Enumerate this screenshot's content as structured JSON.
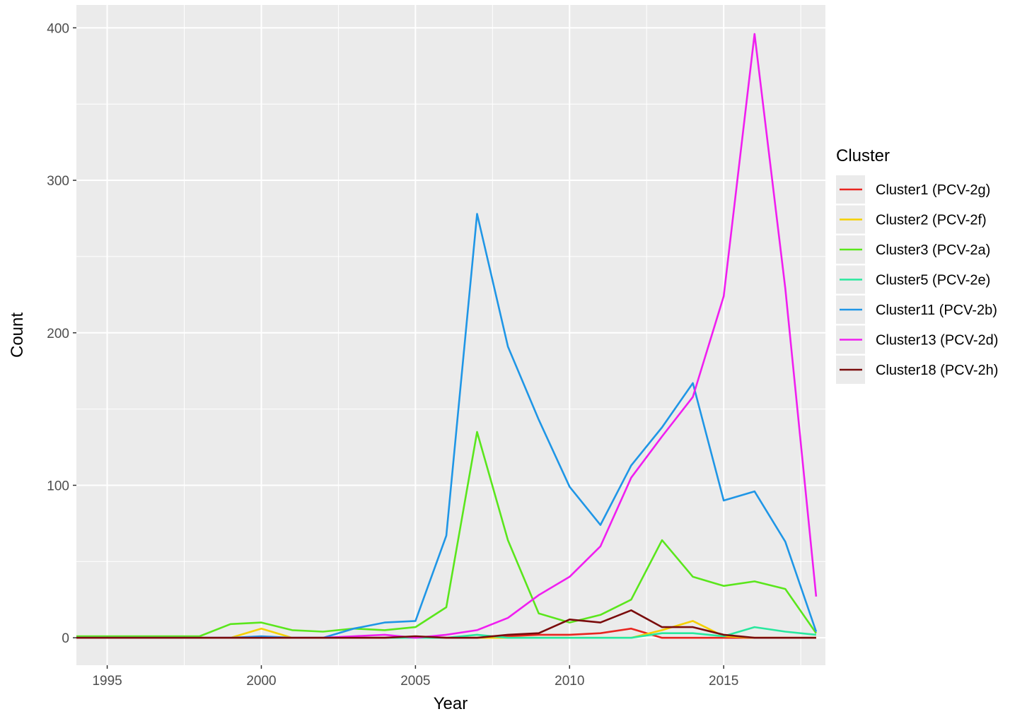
{
  "chart_data": {
    "type": "line",
    "xlabel": "Year",
    "ylabel": "Count",
    "xlim": [
      1994,
      2018.3
    ],
    "ylim": [
      -18,
      415
    ],
    "x_ticks": [
      1995,
      2000,
      2005,
      2010,
      2015
    ],
    "y_ticks": [
      0,
      100,
      200,
      300,
      400
    ],
    "x": [
      1994,
      1995,
      1996,
      1997,
      1998,
      1999,
      2000,
      2001,
      2002,
      2003,
      2004,
      2005,
      2006,
      2007,
      2008,
      2009,
      2010,
      2011,
      2012,
      2013,
      2014,
      2015,
      2016,
      2017,
      2018
    ],
    "grid": true,
    "background": "#ebebeb",
    "legend_title": "Cluster",
    "legend_position": "right",
    "series": [
      {
        "name": "Cluster1 (PCV-2g)",
        "color": "#e8251f",
        "values": [
          0,
          0,
          0,
          0,
          0,
          0,
          0,
          0,
          0,
          0,
          0,
          0,
          0,
          0,
          1,
          2,
          2,
          3,
          6,
          0,
          0,
          0,
          0,
          0,
          0
        ]
      },
      {
        "name": "Cluster2 (PCV-2f)",
        "color": "#f5d000",
        "values": [
          0,
          0,
          0,
          0,
          0,
          0,
          6,
          0,
          0,
          0,
          0,
          0,
          0,
          0,
          0,
          0,
          0,
          0,
          0,
          5,
          11,
          1,
          0,
          0,
          0
        ]
      },
      {
        "name": "Cluster3 (PCV-2a)",
        "color": "#5ae61c",
        "values": [
          1,
          1,
          1,
          1,
          1,
          9,
          10,
          5,
          4,
          6,
          5,
          7,
          20,
          135,
          64,
          16,
          10,
          15,
          25,
          64,
          40,
          34,
          37,
          32,
          3
        ]
      },
      {
        "name": "Cluster5 (PCV-2e)",
        "color": "#28e89e",
        "values": [
          0,
          0,
          0,
          0,
          0,
          0,
          0,
          0,
          0,
          0,
          0,
          0,
          0,
          2,
          0,
          0,
          0,
          0,
          0,
          3,
          3,
          1,
          7,
          4,
          2
        ]
      },
      {
        "name": "Cluster11 (PCV-2b)",
        "color": "#1f96e6",
        "values": [
          0,
          0,
          0,
          0,
          0,
          0,
          1,
          0,
          0,
          6,
          10,
          11,
          67,
          278,
          191,
          143,
          99,
          74,
          113,
          138,
          167,
          90,
          96,
          63,
          4
        ]
      },
      {
        "name": "Cluster13 (PCV-2d)",
        "color": "#f01ef0",
        "values": [
          0,
          0,
          0,
          0,
          0,
          0,
          0,
          0,
          0,
          1,
          2,
          0,
          2,
          5,
          13,
          28,
          40,
          60,
          105,
          132,
          158,
          224,
          396,
          229,
          27
        ]
      },
      {
        "name": "Cluster18 (PCV-2h)",
        "color": "#7a0c0c",
        "values": [
          0,
          0,
          0,
          0,
          0,
          0,
          0,
          0,
          0,
          0,
          0,
          1,
          0,
          0,
          2,
          3,
          12,
          10,
          18,
          7,
          7,
          2,
          0,
          0,
          0
        ]
      }
    ]
  }
}
